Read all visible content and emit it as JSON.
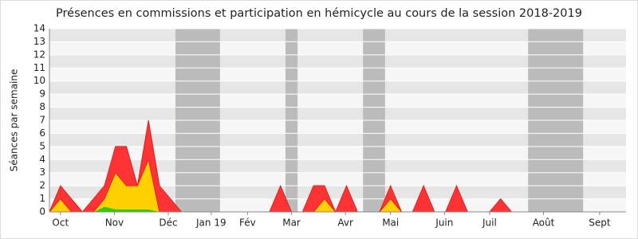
{
  "chart_data": {
    "type": "stacked-area",
    "title": "Présences en commissions et participation en hémicycle au cours de la session 2018-2019",
    "y_label": "Séances par semaine",
    "x": [
      0,
      1,
      2,
      3,
      4,
      5,
      6,
      7,
      8,
      9,
      10,
      11,
      12,
      13,
      14,
      15,
      16,
      17,
      18,
      19,
      20,
      21,
      22,
      23,
      24,
      25,
      26,
      27,
      28,
      29,
      30,
      31,
      32,
      33,
      34,
      35,
      36,
      37,
      38,
      39,
      40,
      41,
      42,
      43,
      44,
      45,
      46,
      47,
      48,
      49,
      50,
      51,
      52
    ],
    "series": [
      {
        "color": "#33cc00",
        "values": [
          0,
          0,
          0,
          0,
          0,
          0.4,
          0.2,
          0.2,
          0.2,
          0.2,
          0,
          0,
          0,
          0,
          0,
          0,
          0,
          0,
          0,
          0,
          0,
          0,
          0,
          0,
          0,
          0,
          0,
          0,
          0,
          0,
          0,
          0,
          0,
          0,
          0,
          0,
          0,
          0,
          0,
          0,
          0,
          0,
          0,
          0,
          0,
          0,
          0,
          0,
          0,
          0,
          0,
          0,
          0
        ]
      },
      {
        "color": "#ffd000",
        "values": [
          0,
          1,
          0,
          0,
          0,
          0.6,
          2.8,
          1.8,
          1.8,
          3.8,
          0,
          0,
          0,
          0,
          0,
          0,
          0,
          0,
          0,
          0,
          0,
          0,
          0,
          0,
          0,
          1,
          0,
          0,
          0,
          0,
          0,
          1,
          0,
          0,
          0,
          0,
          0,
          0,
          0,
          0,
          0,
          0,
          0,
          0,
          0,
          0,
          0,
          0,
          0,
          0,
          0,
          0,
          0
        ]
      },
      {
        "color": "#ff3333",
        "values": [
          0,
          1,
          1,
          0,
          1,
          1,
          2,
          3,
          0,
          3,
          2,
          1,
          0,
          0,
          0,
          0,
          0,
          0,
          0,
          0,
          0,
          2,
          0,
          0,
          2,
          1,
          0,
          2,
          0,
          0,
          0,
          1,
          0,
          0,
          2,
          0,
          0,
          2,
          0,
          0,
          0,
          1,
          0,
          0,
          0,
          0,
          0,
          0,
          0,
          0,
          0,
          0,
          0
        ]
      }
    ],
    "shaded_ranges": [
      [
        11.45,
        15.5
      ],
      [
        21.45,
        22.55
      ],
      [
        28.5,
        30.5
      ],
      [
        43.5,
        48.5
      ]
    ],
    "shade_color": "#bbbbbb",
    "xlim": [
      0,
      52.4
    ],
    "xticks": [
      {
        "value": 1,
        "label": "Oct"
      },
      {
        "value": 5.9,
        "label": "Nov"
      },
      {
        "value": 10.8,
        "label": "Déc"
      },
      {
        "value": 14.7,
        "label": "Jan 19"
      },
      {
        "value": 18,
        "label": "Fév"
      },
      {
        "value": 22,
        "label": "Mar"
      },
      {
        "value": 26.9,
        "label": "Avr"
      },
      {
        "value": 31,
        "label": "Mai"
      },
      {
        "value": 35.9,
        "label": "Juin"
      },
      {
        "value": 40,
        "label": "Juil"
      },
      {
        "value": 44.9,
        "label": "Août"
      },
      {
        "value": 50,
        "label": "Sept"
      }
    ],
    "ylim": [
      0,
      14
    ],
    "yticks": [
      0,
      1,
      2,
      3,
      4,
      5,
      6,
      7,
      8,
      9,
      10,
      11,
      12,
      13,
      14
    ],
    "grid": true
  }
}
